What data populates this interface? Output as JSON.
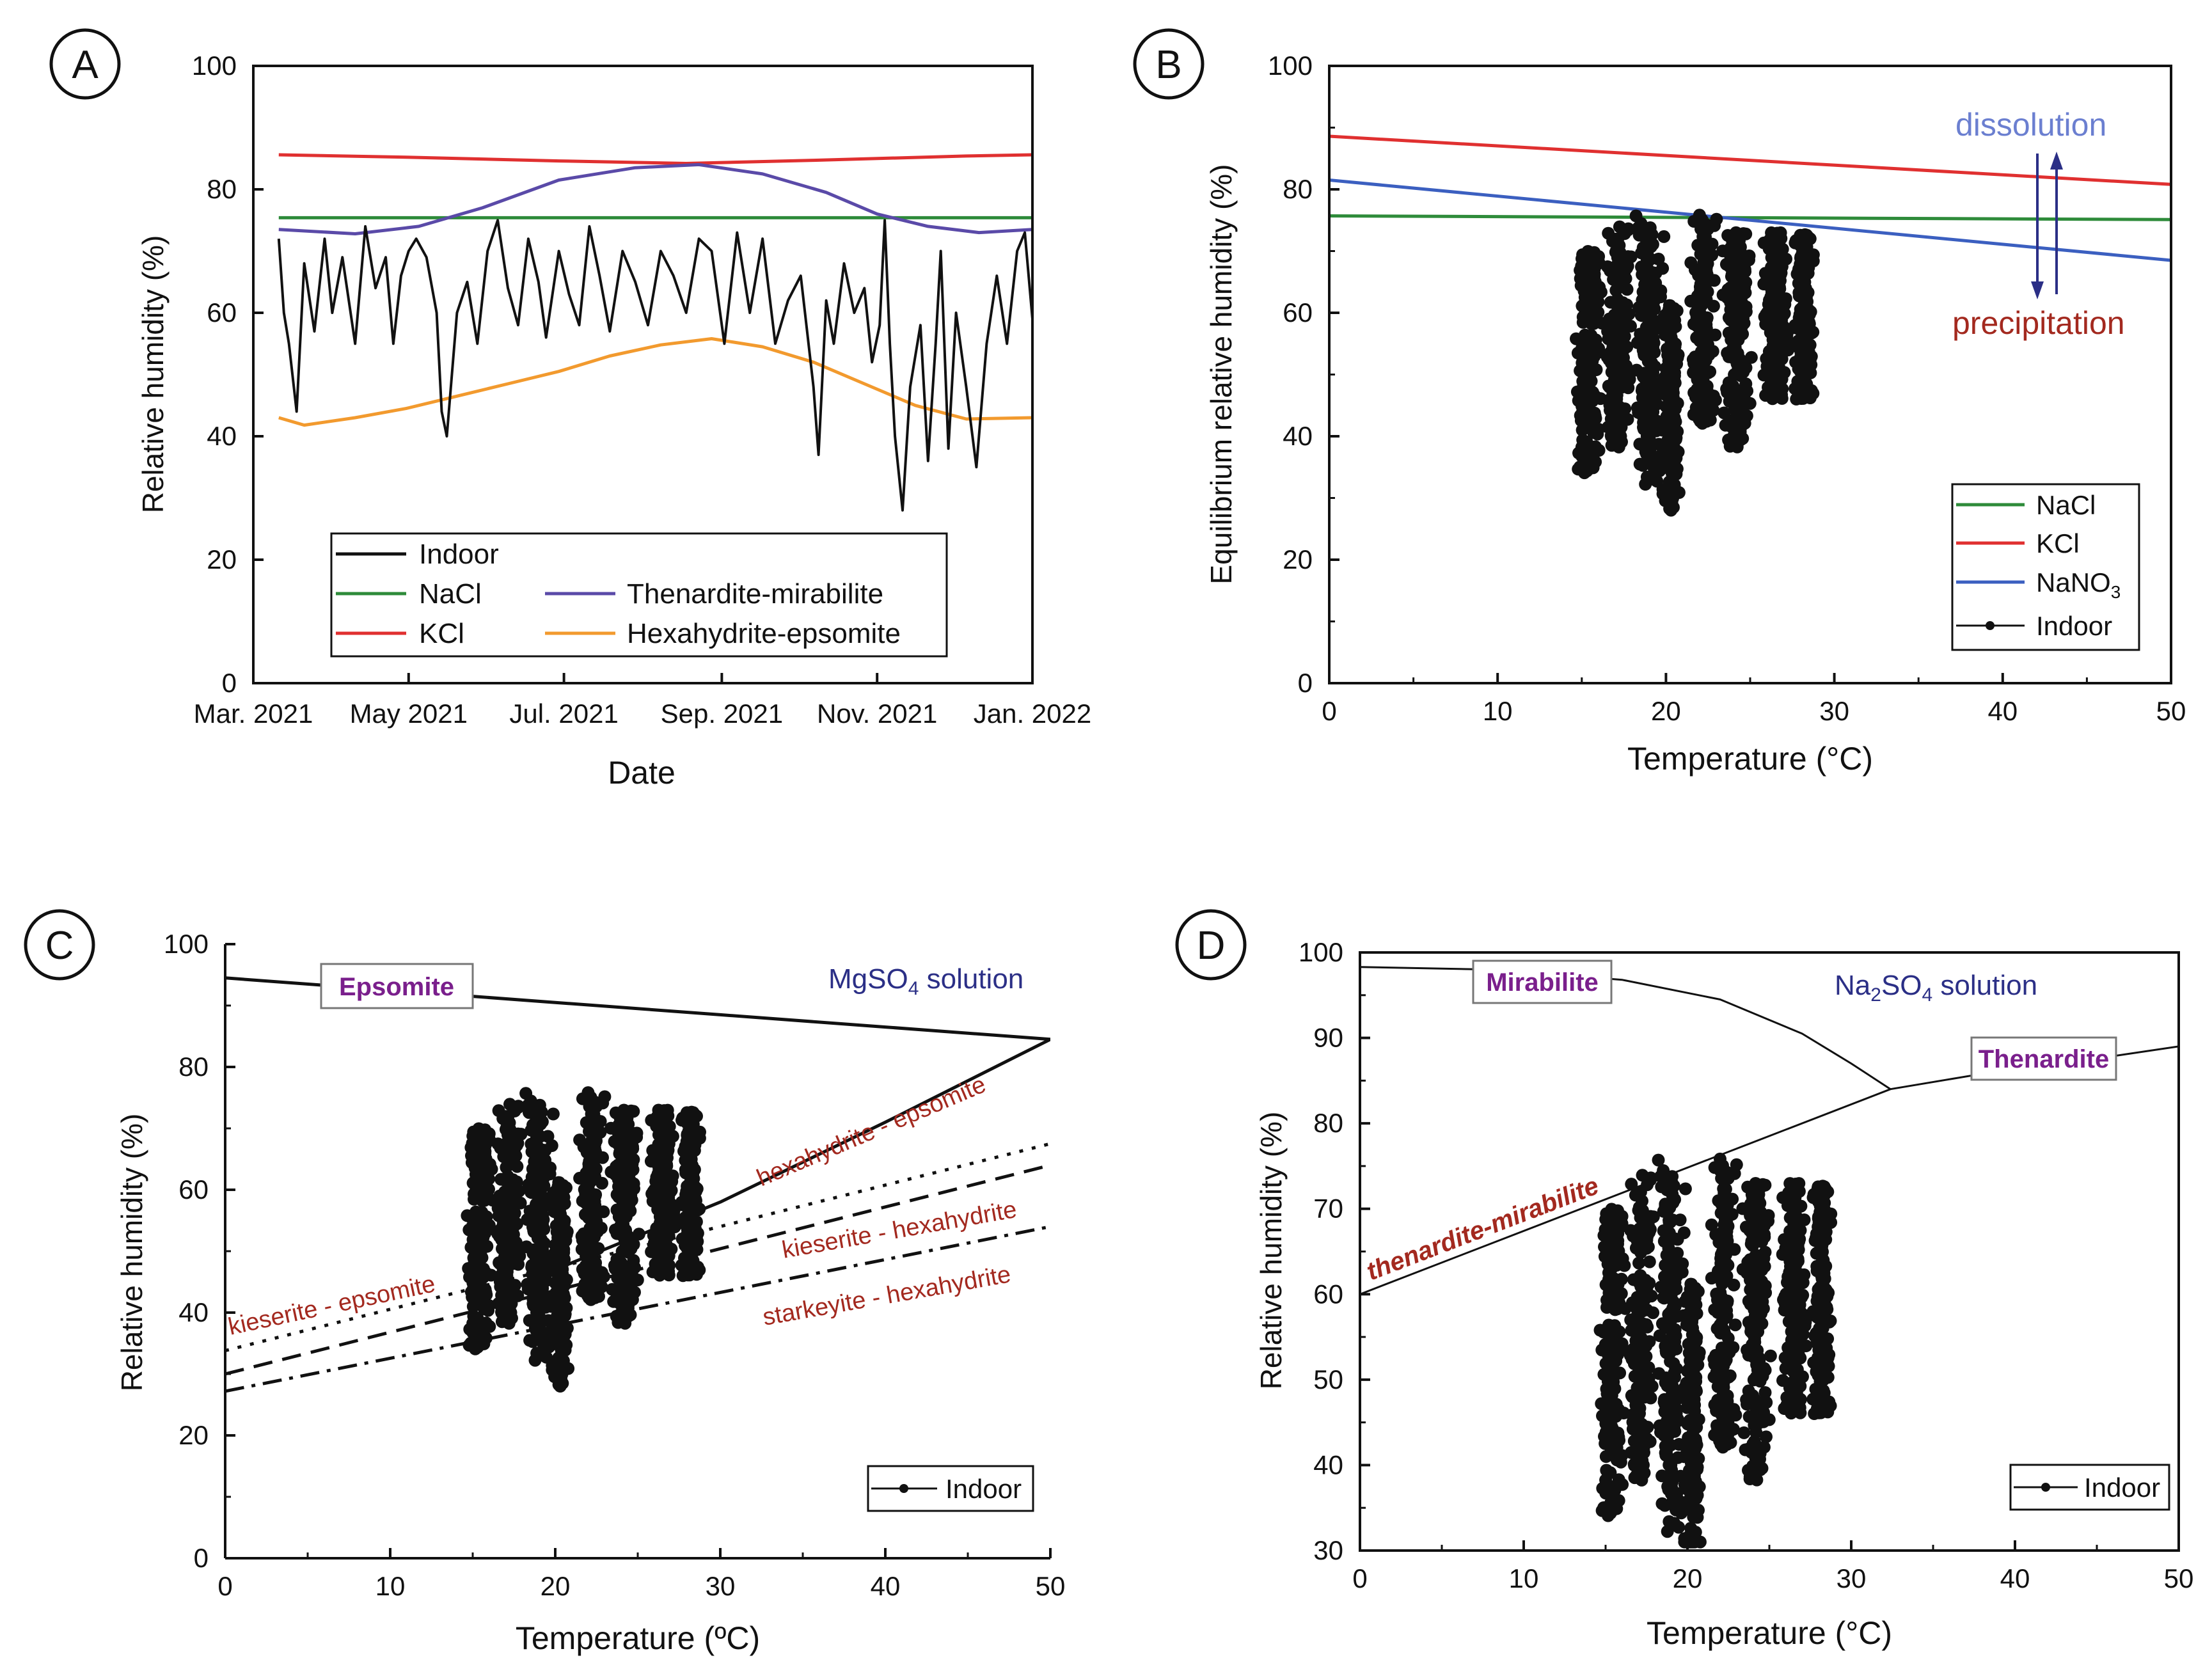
{
  "colors": {
    "black": "#111111",
    "green": "#2e8b3a",
    "red": "#e03030",
    "purple": "#5a4aa8",
    "orange": "#f29a2e",
    "blue": "#3b5fc0",
    "darkred": "#a3291f",
    "navy": "#2b2f86",
    "magenta": "#7a1f8c",
    "lightblue": "#6b7fd0"
  },
  "chart_data": [
    {
      "panel": "A",
      "type": "line",
      "xlabel": "Date",
      "ylabel": "Relative humidity (%)",
      "xlim": [
        0,
        306
      ],
      "ylim": [
        0,
        100
      ],
      "x_ticks": [
        0,
        61,
        122,
        184,
        245,
        306
      ],
      "x_tick_labels": [
        "Mar. 2021",
        "May 2021",
        "Jul. 2021",
        "Sep. 2021",
        "Nov. 2021",
        "Jan. 2022"
      ],
      "y_ticks": [
        0,
        20,
        40,
        60,
        80,
        100
      ],
      "legend": {
        "position": "bottom-center",
        "entries": [
          "Indoor",
          "NaCl",
          "Thenardite-mirabilite",
          "KCl",
          "Hexahydrite-epsomite"
        ]
      },
      "series": [
        {
          "name": "KCl",
          "color": "red",
          "x": [
            10,
            60,
            120,
            170,
            220,
            280,
            306
          ],
          "y": [
            85.6,
            85.2,
            84.6,
            84.2,
            84.7,
            85.4,
            85.6
          ]
        },
        {
          "name": "NaCl",
          "color": "green",
          "x": [
            10,
            306
          ],
          "y": [
            75.4,
            75.4
          ]
        },
        {
          "name": "Thenardite-mirabilite",
          "color": "purple",
          "x": [
            10,
            40,
            65,
            90,
            120,
            150,
            175,
            200,
            225,
            245,
            265,
            285,
            306
          ],
          "y": [
            73.5,
            72.8,
            74,
            77,
            81.5,
            83.5,
            84,
            82.5,
            79.5,
            76,
            74,
            73,
            73.5
          ]
        },
        {
          "name": "Hexahydrite-epsomite",
          "color": "orange",
          "x": [
            10,
            20,
            40,
            60,
            80,
            100,
            120,
            140,
            160,
            180,
            200,
            220,
            240,
            260,
            280,
            306
          ],
          "y": [
            43,
            41.8,
            43,
            44.5,
            46.5,
            48.5,
            50.5,
            53,
            54.8,
            55.8,
            54.5,
            52,
            48.5,
            45,
            42.8,
            43
          ]
        },
        {
          "name": "Indoor",
          "color": "black",
          "x": [
            10,
            12,
            14,
            17,
            20,
            24,
            28,
            31,
            35,
            40,
            44,
            48,
            52,
            55,
            58,
            61,
            64,
            68,
            72,
            74,
            76,
            80,
            84,
            88,
            92,
            96,
            100,
            104,
            108,
            112,
            115,
            120,
            124,
            128,
            132,
            136,
            140,
            145,
            150,
            155,
            160,
            165,
            170,
            175,
            180,
            185,
            190,
            195,
            200,
            205,
            210,
            215,
            220,
            222,
            225,
            228,
            232,
            236,
            240,
            243,
            246,
            248,
            250,
            252,
            255,
            258,
            262,
            265,
            268,
            270,
            273,
            276,
            280,
            284,
            288,
            292,
            296,
            300,
            303,
            306
          ],
          "y": [
            72,
            60,
            55,
            44,
            68,
            57,
            72,
            60,
            69,
            55,
            74,
            64,
            69,
            55,
            66,
            70,
            72,
            69,
            60,
            44,
            40,
            60,
            65,
            55,
            70,
            75,
            64,
            58,
            72,
            65,
            56,
            70,
            63,
            58,
            74,
            66,
            57,
            70,
            65,
            58,
            70,
            66,
            60,
            72,
            70,
            55,
            73,
            60,
            72,
            55,
            62,
            66,
            48,
            37,
            62,
            55,
            68,
            60,
            64,
            52,
            58,
            75,
            55,
            40,
            28,
            48,
            58,
            36,
            55,
            70,
            38,
            60,
            48,
            35,
            55,
            66,
            55,
            70,
            73,
            59
          ]
        }
      ]
    },
    {
      "panel": "B",
      "type": "line",
      "xlabel": "Temperature (°C)",
      "ylabel": "Equilibrium relative humidity (%)",
      "xlim": [
        0,
        50
      ],
      "ylim": [
        0,
        100
      ],
      "x_ticks": [
        0,
        10,
        20,
        30,
        40,
        50
      ],
      "y_ticks": [
        0,
        20,
        40,
        60,
        80,
        100
      ],
      "annotations": [
        "dissolution",
        "precipitation"
      ],
      "legend": {
        "position": "bottom-right",
        "entries": [
          "NaCl",
          "KCl",
          "NaNO3",
          "Indoor"
        ]
      },
      "series": [
        {
          "name": "NaCl",
          "color": "green",
          "x": [
            0,
            50
          ],
          "y": [
            75.7,
            75.1
          ]
        },
        {
          "name": "KCl",
          "color": "red",
          "x": [
            0,
            50
          ],
          "y": [
            88.6,
            80.8
          ]
        },
        {
          "name": "NaNO3",
          "color": "blue",
          "x": [
            0,
            50
          ],
          "y": [
            81.5,
            68.5
          ]
        },
        {
          "name": "Indoor",
          "color": "black",
          "type": "scatter"
        }
      ]
    },
    {
      "panel": "C",
      "type": "line",
      "xlabel": "Temperature (ºC)",
      "ylabel": "Relative humidity (%)",
      "xlim": [
        0,
        50
      ],
      "ylim": [
        0,
        100
      ],
      "x_ticks": [
        0,
        10,
        20,
        30,
        40,
        50
      ],
      "y_ticks": [
        0,
        20,
        40,
        60,
        80,
        100
      ],
      "region_labels": [
        "Epsomite",
        "MgSO4 solution"
      ],
      "curve_labels": [
        "hexahydrite - epsomite",
        "kieserite - hexahydrite",
        "starkeyite - hexahydrite",
        "kieserite - epsomite"
      ],
      "legend": {
        "position": "bottom-right",
        "entries": [
          "Indoor"
        ]
      },
      "series": [
        {
          "name": "Epsomite-solution",
          "style": "solid",
          "x": [
            0,
            10,
            20,
            30,
            40,
            50
          ],
          "y": [
            94.5,
            92.5,
            90.5,
            88.5,
            86.5,
            84.5
          ]
        },
        {
          "name": "hexahydrite - epsomite",
          "style": "solid",
          "x": [
            20,
            30,
            40,
            50
          ],
          "y": [
            47,
            58,
            71,
            84.5
          ]
        },
        {
          "name": "kieserite - epsomite",
          "style": "dotted",
          "x": [
            0,
            50
          ],
          "y": [
            33.8,
            67.5
          ]
        },
        {
          "name": "kieserite - hexahydrite",
          "style": "dashed",
          "x": [
            0,
            50
          ],
          "y": [
            30,
            64
          ]
        },
        {
          "name": "starkeyite - hexahydrite",
          "style": "dashdot",
          "x": [
            0,
            50
          ],
          "y": [
            27.2,
            54
          ]
        },
        {
          "name": "Indoor",
          "color": "black",
          "type": "scatter"
        }
      ]
    },
    {
      "panel": "D",
      "type": "line",
      "xlabel": "Temperature (°C)",
      "ylabel": "Relative humidity (%)",
      "xlim": [
        0,
        50
      ],
      "ylim": [
        30,
        100
      ],
      "x_ticks": [
        0,
        10,
        20,
        30,
        40,
        50
      ],
      "y_ticks": [
        30,
        40,
        50,
        60,
        70,
        80,
        90,
        100
      ],
      "region_labels": [
        "Mirabilite",
        "Na2SO4 solution",
        "Thenardite"
      ],
      "curve_labels": [
        "thenardite-mirabilite"
      ],
      "legend": {
        "position": "bottom-right",
        "entries": [
          "Indoor"
        ]
      },
      "series": [
        {
          "name": "Mirabilite-solution",
          "x": [
            0,
            8,
            16,
            22,
            27,
            30,
            32.4
          ],
          "y": [
            98.3,
            98,
            96.8,
            94.5,
            90.5,
            87,
            84
          ]
        },
        {
          "name": "thenardite-mirabilite",
          "x": [
            0,
            32.4
          ],
          "y": [
            60,
            84
          ]
        },
        {
          "name": "Thenardite-solution",
          "x": [
            32.4,
            38,
            44,
            50
          ],
          "y": [
            84,
            85.8,
            87.3,
            89
          ]
        },
        {
          "name": "Indoor",
          "color": "black",
          "type": "scatter"
        }
      ]
    }
  ],
  "panel_labels": {
    "a": "A",
    "b": "B",
    "c": "C",
    "d": "D"
  },
  "legend_a": {
    "indoor": "Indoor",
    "nacl": "NaCl",
    "kcl": "KCl",
    "then": "Thenardite-mirabilite",
    "hexa": "Hexahydrite-epsomite"
  },
  "legend_b": {
    "nacl": "NaCl",
    "kcl": "KCl",
    "nano3": "NaNO",
    "nano3_sub": "3",
    "indoor": "Indoor"
  },
  "legend_c": {
    "indoor": "Indoor"
  },
  "legend_d": {
    "indoor": "Indoor"
  },
  "labels_b": {
    "dissolution": "dissolution",
    "precipitation": "precipitation"
  },
  "labels_c": {
    "epsomite": "Epsomite",
    "solution_main": "MgSO",
    "solution_sub": "4",
    "solution_tail": " solution",
    "hexa_epsomite": "hexahydrite - epsomite",
    "kies_hexa": "kieserite - hexahydrite",
    "stark_hexa": "starkeyite - hexahydrite",
    "kies_epsomite": "kieserite - epsomite"
  },
  "labels_d": {
    "mirabilite": "Mirabilite",
    "solution_main": "Na",
    "solution_sub1": "2",
    "solution_mid": "SO",
    "solution_sub2": "4",
    "solution_tail": " solution",
    "thenardite": "Thenardite",
    "then_mir": "thenardite-mirabilite"
  }
}
